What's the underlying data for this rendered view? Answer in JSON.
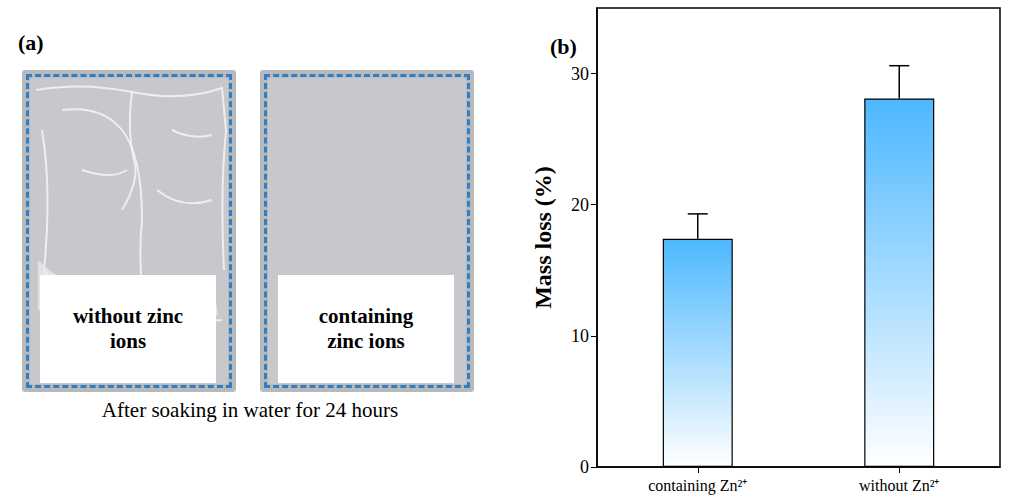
{
  "panel_a": {
    "panel_label": "(a)",
    "photos": [
      {
        "label": "without zinc ions"
      },
      {
        "label": "containing zinc ions"
      }
    ],
    "caption": "After soaking in water for 24 hours"
  },
  "chart_data": {
    "panel_label": "(b)",
    "type": "bar",
    "y_label": "Mass loss (%)",
    "categories": [
      "containing Zn²⁺",
      "without Zn²⁺"
    ],
    "values": [
      17.4,
      28.1
    ],
    "errors": [
      1.9,
      2.5
    ],
    "color": "#4db8ff",
    "ylim": [
      0,
      35
    ],
    "yticks": [
      0,
      10,
      20,
      30
    ],
    "grid": false
  }
}
